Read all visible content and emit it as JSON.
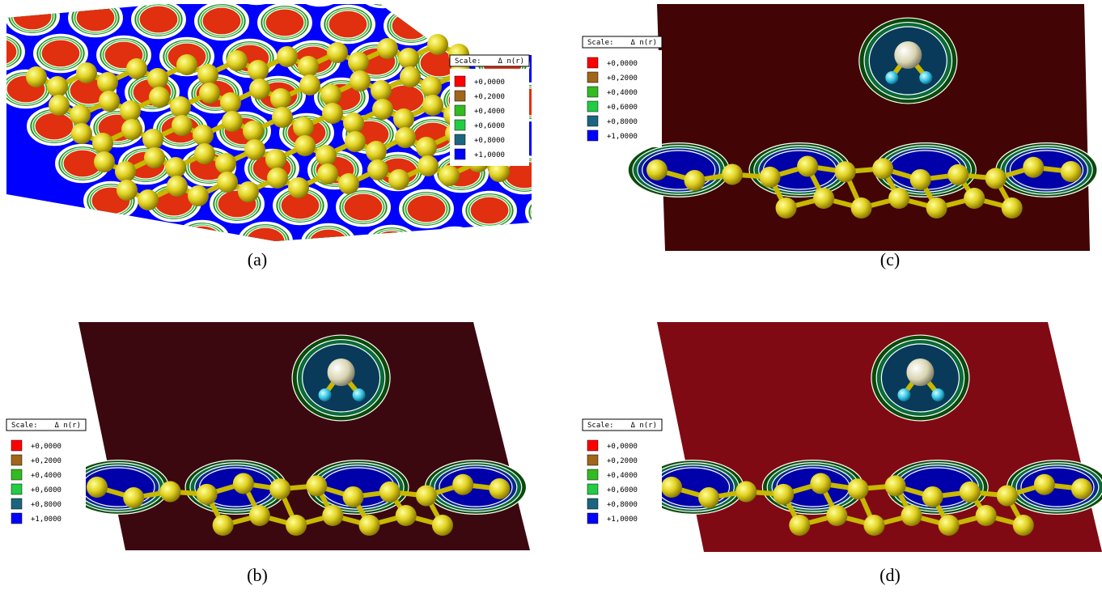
{
  "panels": [
    {
      "caption": "(a)",
      "legend": {
        "title": "Scale:",
        "quantity": "Δ n(r)",
        "entries": [
          {
            "label": "+0,0000",
            "color": "#ff0000"
          },
          {
            "label": "+0,2000",
            "color": "#a0661a"
          },
          {
            "label": "+0,4000",
            "color": "#33bb22"
          },
          {
            "label": "+0,6000",
            "color": "#22cc44"
          },
          {
            "label": "+0,8000",
            "color": "#1a6680"
          },
          {
            "label": "+1,0000",
            "color": "#0000ff"
          }
        ]
      }
    },
    {
      "caption": "(c)",
      "legend": {
        "title": "Scale:",
        "quantity": "Δ n(r)",
        "entries": [
          {
            "label": "+0,0000",
            "color": "#ff0000"
          },
          {
            "label": "+0,2000",
            "color": "#a0661a"
          },
          {
            "label": "+0,4000",
            "color": "#33bb22"
          },
          {
            "label": "+0,6000",
            "color": "#22cc44"
          },
          {
            "label": "+0,8000",
            "color": "#1a6680"
          },
          {
            "label": "+1,0000",
            "color": "#0000ff"
          }
        ]
      }
    },
    {
      "caption": "(b)",
      "legend": {
        "title": "Scale:",
        "quantity": "Δ n(r)",
        "entries": [
          {
            "label": "+0,0000",
            "color": "#ff0000"
          },
          {
            "label": "+0,2000",
            "color": "#a0661a"
          },
          {
            "label": "+0,4000",
            "color": "#33bb22"
          },
          {
            "label": "+0,6000",
            "color": "#22cc44"
          },
          {
            "label": "+0,8000",
            "color": "#1a6680"
          },
          {
            "label": "+1,0000",
            "color": "#0000ff"
          }
        ]
      }
    },
    {
      "caption": "(d)",
      "legend": {
        "title": "Scale:",
        "quantity": "Δ n(r)",
        "entries": [
          {
            "label": "+0,0000",
            "color": "#ff0000"
          },
          {
            "label": "+0,2000",
            "color": "#a0661a"
          },
          {
            "label": "+0,4000",
            "color": "#33bb22"
          },
          {
            "label": "+0,6000",
            "color": "#22cc44"
          },
          {
            "label": "+0,8000",
            "color": "#1a6680"
          },
          {
            "label": "+1,0000",
            "color": "#0000ff"
          }
        ]
      }
    }
  ]
}
